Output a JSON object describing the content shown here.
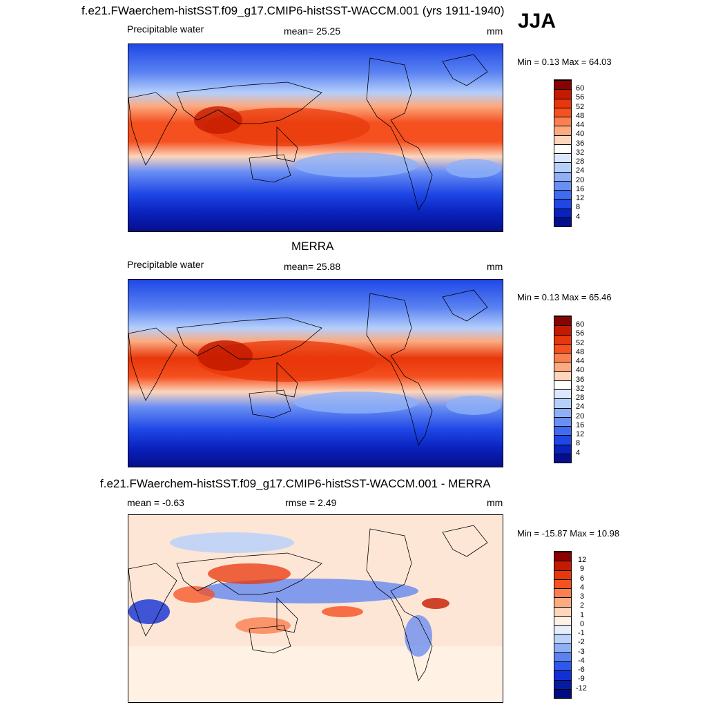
{
  "season": "JJA",
  "panels": [
    {
      "title": "f.e21.FWaerchem-histSST.f09_g17.CMIP6-histSST-WACCM.001 (yrs 1911-1940)",
      "left_label": "Precipitable water",
      "center_label": "mean=  25.25",
      "units": "mm",
      "minmax": "Min =   0.13 Max =  64.03",
      "colorbar_labels": [
        "60",
        "56",
        "52",
        "48",
        "44",
        "40",
        "36",
        "32",
        "28",
        "24",
        "20",
        "16",
        "12",
        "8",
        "4"
      ],
      "colorbar_colors": [
        "#8b0000",
        "#c41a00",
        "#e8370a",
        "#f55020",
        "#fa8050",
        "#fcaa80",
        "#fdd6bc",
        "#ffffff",
        "#dbe7fd",
        "#b5cffb",
        "#8fb0f7",
        "#6a8ff4",
        "#3f6bf0",
        "#1f47e6",
        "#0a22bd",
        "#050f8c"
      ]
    },
    {
      "title": "MERRA",
      "left_label": "Precipitable water",
      "center_label": "mean=  25.88",
      "units": "mm",
      "minmax": "Min =   0.13 Max =  65.46",
      "colorbar_labels": [
        "60",
        "56",
        "52",
        "48",
        "44",
        "40",
        "36",
        "32",
        "28",
        "24",
        "20",
        "16",
        "12",
        "8",
        "4"
      ],
      "colorbar_colors": [
        "#8b0000",
        "#c41a00",
        "#e8370a",
        "#f55020",
        "#fa8050",
        "#fcaa80",
        "#fdd6bc",
        "#ffffff",
        "#dbe7fd",
        "#b5cffb",
        "#8fb0f7",
        "#6a8ff4",
        "#3f6bf0",
        "#1f47e6",
        "#0a22bd",
        "#050f8c"
      ]
    },
    {
      "title": "f.e21.FWaerchem-histSST.f09_g17.CMIP6-histSST-WACCM.001 - MERRA",
      "left_label": "mean =  -0.63",
      "center_label": "rmse =   2.49",
      "units": "mm",
      "minmax": "Min = -15.87 Max =  10.98",
      "colorbar_labels": [
        "12",
        "9",
        "6",
        "4",
        "3",
        "2",
        "1",
        "0",
        "-1",
        "-2",
        "-3",
        "-4",
        "-6",
        "-9",
        "-12"
      ],
      "colorbar_colors": [
        "#8b0000",
        "#c41a00",
        "#e8370a",
        "#f55020",
        "#fa8050",
        "#fcaa80",
        "#fdd6bc",
        "#fff1e4",
        "#e6eefe",
        "#bcd2fb",
        "#8fb0f7",
        "#5a82f2",
        "#2d58eb",
        "#1030d6",
        "#061aa6",
        "#030a80"
      ]
    }
  ]
}
